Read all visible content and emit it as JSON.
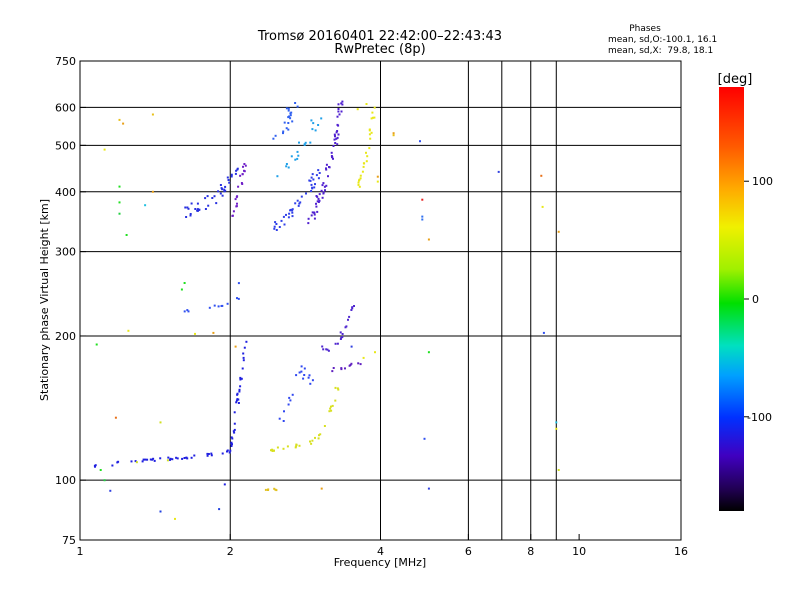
{
  "chart_data": {
    "type": "scatter",
    "title": "Tromsø 20160401 22:42:00–22:43:43",
    "subtitle": "RwPretec (8p)",
    "xlabel": "Frequency [MHz]",
    "ylabel": "Stationary phase Virtual Height [km]",
    "x_scale": "log",
    "y_scale": "log",
    "xlim": [
      1,
      16
    ],
    "ylim": [
      75,
      750
    ],
    "x_ticks": [
      1,
      2,
      4,
      6,
      8,
      10,
      16
    ],
    "x_gridlines": [
      2,
      4,
      6,
      7,
      8,
      9
    ],
    "y_ticks": [
      75,
      100,
      200,
      300,
      400,
      500,
      600,
      750
    ],
    "grid": true,
    "phases_legend": {
      "title": "Phases",
      "line1": "mean, sd,O:-100.1, 16.1",
      "line2": "mean, sd,X:  79.8, 18.1"
    },
    "colorbar": {
      "label": "[deg]",
      "ticks": [
        100,
        0,
        -100
      ],
      "range": [
        -180,
        180
      ]
    },
    "clusters": [
      {
        "name": "",
        "color": "#2020e0",
        "trace": [
          [
            1.07,
            107
          ],
          [
            1.15,
            108
          ],
          [
            1.25,
            109
          ],
          [
            1.4,
            110
          ],
          [
            1.55,
            111
          ],
          [
            1.7,
            112
          ],
          [
            1.85,
            113
          ],
          [
            1.98,
            114
          ],
          [
            2.02,
            120
          ],
          [
            2.05,
            135
          ],
          [
            2.08,
            155
          ],
          [
            2.12,
            175
          ],
          [
            2.15,
            195
          ]
        ],
        "n": 70,
        "jx": 0.008,
        "jy": 0.008
      },
      {
        "name": "",
        "color": "#7020c8",
        "trace": [
          [
            2.0,
            340
          ],
          [
            2.04,
            365
          ],
          [
            2.08,
            395
          ],
          [
            2.11,
            430
          ],
          [
            2.14,
            455
          ]
        ],
        "n": 20,
        "jx": 0.008,
        "jy": 0.02
      },
      {
        "name": "",
        "color": "#2830e0",
        "trace": [
          [
            1.65,
            360
          ],
          [
            1.75,
            375
          ],
          [
            1.85,
            390
          ],
          [
            1.95,
            410
          ],
          [
            2.05,
            440
          ]
        ],
        "n": 40,
        "jx": 0.02,
        "jy": 0.03
      },
      {
        "name": "",
        "color": "#3040e8",
        "trace": [
          [
            2.45,
            335
          ],
          [
            2.6,
            355
          ],
          [
            2.75,
            380
          ],
          [
            2.9,
            410
          ],
          [
            3.0,
            440
          ]
        ],
        "n": 40,
        "jx": 0.02,
        "jy": 0.02
      },
      {
        "name": "",
        "color": "#3060f0",
        "trace": [
          [
            2.45,
            520
          ],
          [
            2.6,
            560
          ],
          [
            2.7,
            610
          ]
        ],
        "n": 20,
        "jx": 0.02,
        "jy": 0.03
      },
      {
        "name": "",
        "color": "#20a0e8",
        "trace": [
          [
            2.5,
            430
          ],
          [
            2.7,
            470
          ],
          [
            2.85,
            510
          ],
          [
            3.0,
            560
          ]
        ],
        "n": 20,
        "jx": 0.02,
        "jy": 0.03
      },
      {
        "name": "",
        "color": "#5020d0",
        "trace": [
          [
            2.9,
            350
          ],
          [
            3.0,
            380
          ],
          [
            3.1,
            420
          ],
          [
            3.2,
            480
          ],
          [
            3.3,
            550
          ],
          [
            3.35,
            640
          ]
        ],
        "n": 60,
        "jx": 0.012,
        "jy": 0.02
      },
      {
        "name": "",
        "color": "#e8e818",
        "trace": [
          [
            3.6,
            410
          ],
          [
            3.7,
            450
          ],
          [
            3.8,
            500
          ],
          [
            3.85,
            560
          ],
          [
            3.88,
            600
          ]
        ],
        "n": 25,
        "jx": 0.01,
        "jy": 0.02
      },
      {
        "name": "",
        "color": "#3048f0",
        "trace": [
          [
            2.5,
            130
          ],
          [
            2.6,
            145
          ],
          [
            2.7,
            160
          ],
          [
            2.8,
            170
          ],
          [
            2.9,
            160
          ]
        ],
        "n": 18,
        "jx": 0.015,
        "jy": 0.02
      },
      {
        "name": "",
        "color": "#3050f0",
        "trace": [
          [
            1.6,
            225
          ],
          [
            1.75,
            228
          ],
          [
            1.9,
            230
          ],
          [
            2.05,
            235
          ],
          [
            2.1,
            260
          ]
        ],
        "n": 12,
        "jx": 0.01,
        "jy": 0.01
      },
      {
        "name": "",
        "color": "#5028d0",
        "trace": [
          [
            3.0,
            190
          ],
          [
            3.15,
            185
          ],
          [
            3.3,
            195
          ],
          [
            3.45,
            215
          ],
          [
            3.55,
            240
          ]
        ],
        "n": 20,
        "jx": 0.01,
        "jy": 0.015
      },
      {
        "name": "",
        "color": "#6020c0",
        "trace": [
          [
            3.2,
            170
          ],
          [
            3.35,
            172
          ],
          [
            3.5,
            175
          ],
          [
            3.7,
            175
          ]
        ],
        "n": 10,
        "jx": 0.01,
        "jy": 0.008
      },
      {
        "name": "",
        "color": "#d8e020",
        "trace": [
          [
            2.35,
            115
          ],
          [
            2.55,
            117
          ],
          [
            2.75,
            118
          ],
          [
            2.95,
            120
          ],
          [
            3.1,
            130
          ],
          [
            3.2,
            145
          ],
          [
            3.3,
            160
          ]
        ],
        "n": 30,
        "jx": 0.01,
        "jy": 0.01
      },
      {
        "name": "",
        "color": "#e0c020",
        "trace": [
          [
            2.35,
            95
          ],
          [
            2.5,
            96
          ]
        ],
        "n": 6,
        "jx": 0.008,
        "jy": 0.005
      }
    ],
    "scatter_points": [
      [
        1.08,
        192,
        "#20e020"
      ],
      [
        1.12,
        490,
        "#e8e818"
      ],
      [
        1.2,
        410,
        "#20e020"
      ],
      [
        1.2,
        380,
        "#20e020"
      ],
      [
        1.2,
        360,
        "#20d040"
      ],
      [
        1.24,
        325,
        "#20e020"
      ],
      [
        1.22,
        555,
        "#e8a018"
      ],
      [
        1.2,
        565,
        "#e8c018"
      ],
      [
        1.18,
        135,
        "#e87018"
      ],
      [
        1.25,
        205,
        "#e8e818"
      ],
      [
        1.4,
        580,
        "#e8c018"
      ],
      [
        1.4,
        400,
        "#e8a018"
      ],
      [
        1.35,
        375,
        "#20c0e0"
      ],
      [
        1.45,
        132,
        "#d0e020"
      ],
      [
        1.45,
        86,
        "#2040e0"
      ],
      [
        1.6,
        250,
        "#20e020"
      ],
      [
        1.62,
        258,
        "#20e020"
      ],
      [
        1.7,
        202,
        "#e8e818"
      ],
      [
        1.85,
        203,
        "#e8a018"
      ],
      [
        1.9,
        87,
        "#2040e0"
      ],
      [
        1.95,
        98,
        "#2020e0"
      ],
      [
        1.55,
        83,
        "#e8e818"
      ],
      [
        2.05,
        190,
        "#e8a018"
      ],
      [
        1.1,
        105,
        "#20e020"
      ],
      [
        1.12,
        100,
        "#20d040"
      ],
      [
        1.15,
        95,
        "#3040e0"
      ],
      [
        1.3,
        109,
        "#d0e020"
      ],
      [
        1.5,
        110,
        "#d0e020"
      ],
      [
        3.05,
        96,
        "#e8a018"
      ],
      [
        3.5,
        190,
        "#3040e0"
      ],
      [
        3.7,
        180,
        "#e8e818"
      ],
      [
        3.9,
        185,
        "#e8e818"
      ],
      [
        4.25,
        525,
        "#e8c018"
      ],
      [
        4.25,
        530,
        "#e8a018"
      ],
      [
        4.8,
        510,
        "#3050f0"
      ],
      [
        4.85,
        385,
        "#e82020"
      ],
      [
        4.85,
        355,
        "#3070f0"
      ],
      [
        4.85,
        350,
        "#3070f0"
      ],
      [
        5.0,
        318,
        "#e8a018"
      ],
      [
        5.0,
        185,
        "#20e020"
      ],
      [
        4.9,
        122,
        "#3050f0"
      ],
      [
        5.0,
        96,
        "#3040e0"
      ],
      [
        6.9,
        440,
        "#3040e0"
      ],
      [
        8.4,
        432,
        "#e87018"
      ],
      [
        8.45,
        372,
        "#e8e818"
      ],
      [
        8.5,
        203,
        "#3050f0"
      ],
      [
        9.0,
        132,
        "#20c0e0"
      ],
      [
        9.0,
        128,
        "#e8e818"
      ],
      [
        9.1,
        330,
        "#e8a018"
      ],
      [
        9.1,
        105,
        "#d0e020"
      ],
      [
        3.95,
        420,
        "#e8e818"
      ],
      [
        3.95,
        430,
        "#e8a018"
      ],
      [
        3.6,
        595,
        "#e8e818"
      ],
      [
        3.75,
        610,
        "#e8e818"
      ]
    ]
  }
}
